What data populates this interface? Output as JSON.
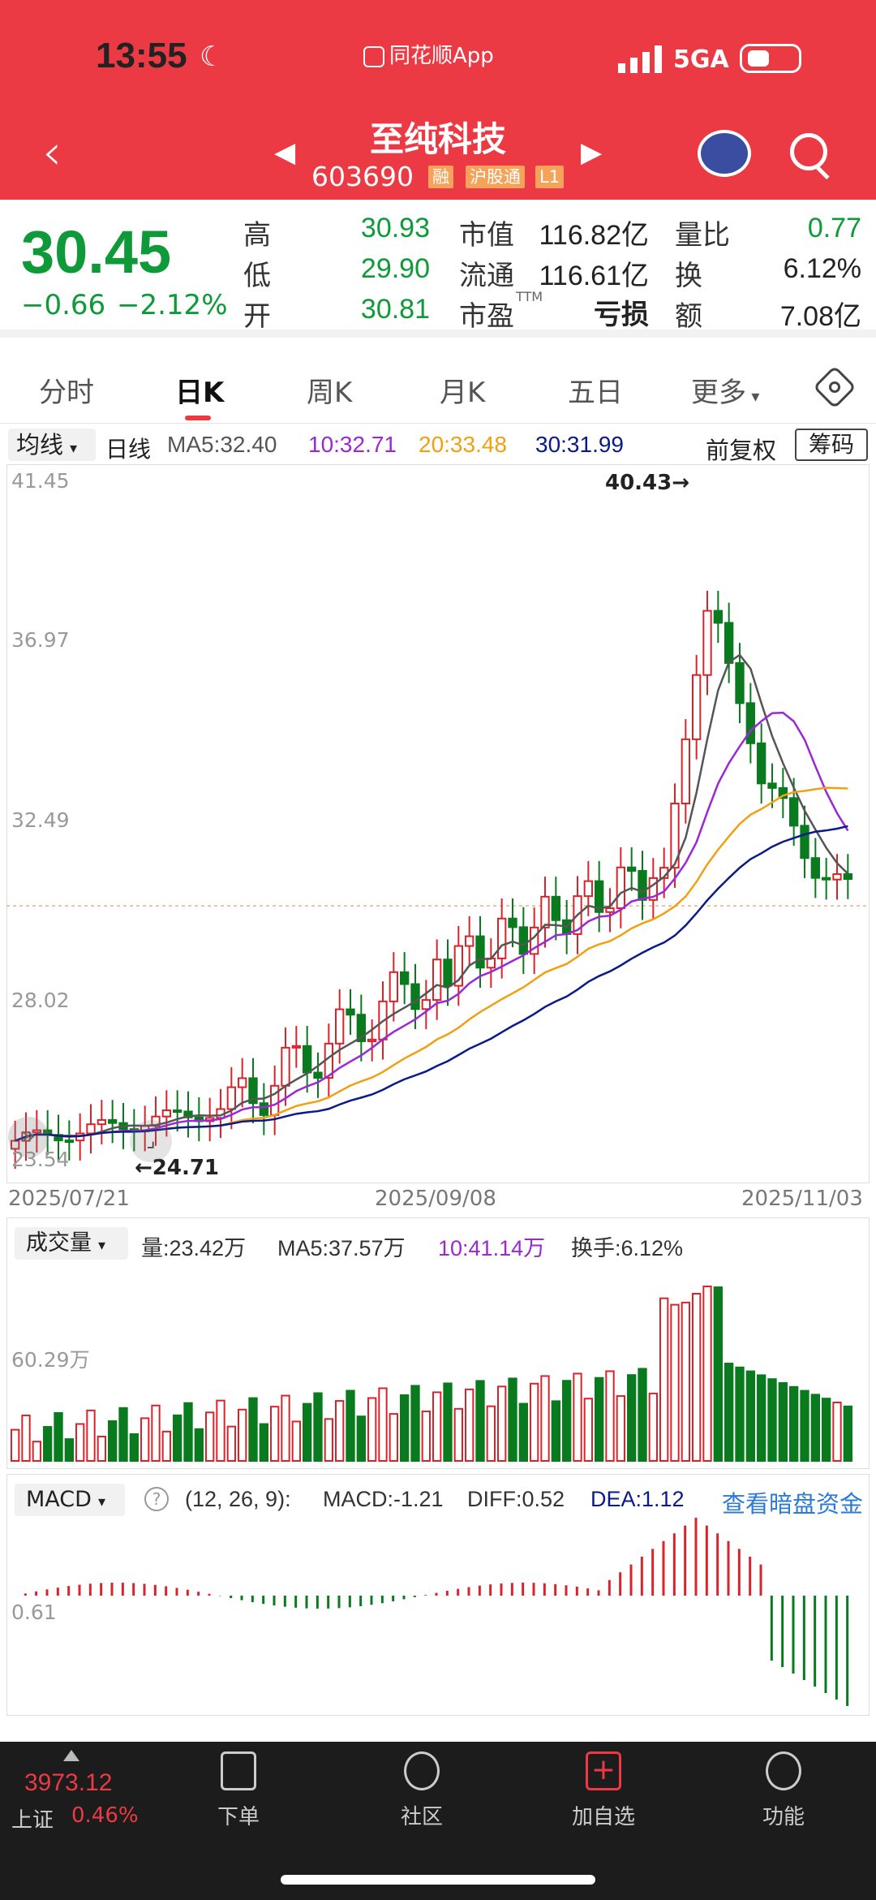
{
  "status_bar": {
    "time": "13:55",
    "app_source": "同花顺App",
    "network": "5GA"
  },
  "header": {
    "stock_name": "至纯科技",
    "stock_code": "603690",
    "tags": [
      "融",
      "沪股通",
      "L1"
    ]
  },
  "quote": {
    "price": "30.45",
    "change": "−0.66",
    "change_pct": "−2.12%",
    "high_label": "高",
    "high": "30.93",
    "low_label": "低",
    "low": "29.90",
    "open_label": "开",
    "open": "30.81",
    "mcap_label": "市值",
    "mcap": "116.82亿",
    "float_label": "流通",
    "float": "116.61亿",
    "pe_label": "市盈",
    "pe_sup": "TTM",
    "pe": "亏损",
    "volratio_label": "量比",
    "volratio": "0.77",
    "turnover_label": "换",
    "turnover": "6.12%",
    "amount_label": "额",
    "amount": "7.08亿"
  },
  "tabs": [
    "分时",
    "日K",
    "周K",
    "月K",
    "五日",
    "更多"
  ],
  "active_tab": "日K",
  "ma_bar": {
    "selector": "均线",
    "period": "日线",
    "ma5": "MA5:32.40",
    "ma10": "10:32.71",
    "ma20": "20:33.48",
    "ma30": "30:31.99",
    "adjust": "前复权",
    "chips": "筹码"
  },
  "kline": {
    "y_labels": [
      "41.45",
      "36.97",
      "32.49",
      "28.02",
      "23.54"
    ],
    "high_mark": "40.43→",
    "low_mark": "←24.71",
    "date_labels": [
      "2025/07/21",
      "2025/09/08",
      "2025/11/03"
    ]
  },
  "volume": {
    "selector": "成交量",
    "vol": "量:23.42万",
    "ma5": "MA5:37.57万",
    "ma10": "10:41.14万",
    "turnover": "换手:6.12%",
    "y_label": "60.29万"
  },
  "macd": {
    "selector": "MACD",
    "help": "?",
    "params": "(12, 26, 9):",
    "macd": "MACD:-1.21",
    "diff": "DIFF:0.52",
    "dea": "DEA:1.12",
    "link": "查看暗盘资金",
    "y_label": "0.61"
  },
  "bottom_nav": {
    "index_value": "3973.12",
    "index_name": "上证",
    "index_pct": "0.46%",
    "items": [
      "下单",
      "社区",
      "加自选",
      "功能"
    ]
  },
  "colors": {
    "up": "#d8232a",
    "down": "#0a7a1e",
    "brand": "#ec3a45",
    "ma5": "#555555",
    "ma10": "#9b27d6",
    "ma20": "#f0a010",
    "ma30": "#0b1a8a"
  }
}
